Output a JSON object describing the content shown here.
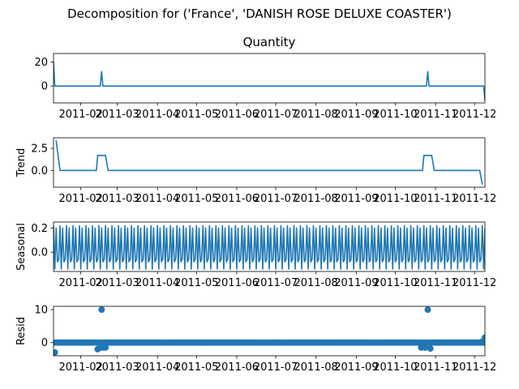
{
  "suptitle": "Decomposition for ('France', 'DANISH ROSE DELUXE COASTER')",
  "chart_data": [
    {
      "type": "line",
      "title": "Quantity",
      "ylabel": "",
      "x_range": [
        "2011-01-11",
        "2011-12-09"
      ],
      "ylim": [
        -14,
        27
      ],
      "yticks": [
        0,
        20
      ],
      "ytick_labels": [
        "0",
        "20"
      ],
      "xticks": [
        "2011-02-01",
        "2011-03-01",
        "2011-04-01",
        "2011-05-01",
        "2011-06-01",
        "2011-07-01",
        "2011-08-01",
        "2011-09-01",
        "2011-10-01",
        "2011-11-01",
        "2011-12-01"
      ],
      "xtick_labels": [
        "2011-02",
        "2011-03",
        "2011-04",
        "2011-05",
        "2011-06",
        "2011-07",
        "2011-08",
        "2011-09",
        "2011-10",
        "2011-11",
        "2011-12"
      ],
      "color": "#1f77b4",
      "x": [
        "2011-01-11",
        "2011-01-12",
        "2011-02-16",
        "2011-02-17",
        "2011-02-18",
        "2011-10-25",
        "2011-10-26",
        "2011-10-27",
        "2011-12-08",
        "2011-12-09"
      ],
      "y": [
        20,
        0,
        0,
        12,
        0,
        0,
        12,
        0,
        0,
        -12
      ]
    },
    {
      "type": "line",
      "title": "",
      "ylabel": "Trend",
      "x_range": [
        "2011-01-11",
        "2011-12-09"
      ],
      "ylim": [
        -1.9,
        3.7
      ],
      "yticks": [
        0,
        2.5
      ],
      "ytick_labels": [
        "0.0",
        "2.5"
      ],
      "xticks": [
        "2011-02-01",
        "2011-03-01",
        "2011-04-01",
        "2011-05-01",
        "2011-06-01",
        "2011-07-01",
        "2011-08-01",
        "2011-09-01",
        "2011-10-01",
        "2011-11-01",
        "2011-12-01"
      ],
      "xtick_labels": [
        "2011-02",
        "2011-03",
        "2011-04",
        "2011-05",
        "2011-06",
        "2011-07",
        "2011-08",
        "2011-09",
        "2011-10",
        "2011-11",
        "2011-12"
      ],
      "color": "#1f77b4",
      "x": [
        "2011-01-13",
        "2011-01-16",
        "2011-02-13",
        "2011-02-14",
        "2011-02-20",
        "2011-02-22",
        "2011-10-22",
        "2011-10-23",
        "2011-10-29",
        "2011-10-31",
        "2011-12-05",
        "2011-12-07"
      ],
      "y": [
        3.4,
        0,
        0,
        1.7,
        1.7,
        0,
        0,
        1.7,
        1.7,
        0,
        0,
        -1.6
      ]
    },
    {
      "type": "line",
      "title": "",
      "ylabel": "Seasonal",
      "x_range": [
        "2011-01-11",
        "2011-12-09"
      ],
      "ylim": [
        -0.16,
        0.25
      ],
      "yticks": [
        0,
        0.2
      ],
      "ytick_labels": [
        "0.0",
        "0.2"
      ],
      "xticks": [
        "2011-02-01",
        "2011-03-01",
        "2011-04-01",
        "2011-05-01",
        "2011-06-01",
        "2011-07-01",
        "2011-08-01",
        "2011-09-01",
        "2011-10-01",
        "2011-11-01",
        "2011-12-01"
      ],
      "xtick_labels": [
        "2011-02",
        "2011-03",
        "2011-04",
        "2011-05",
        "2011-06",
        "2011-07",
        "2011-08",
        "2011-09",
        "2011-10",
        "2011-11",
        "2011-12"
      ],
      "color": "#1f77b4",
      "start": "2011-01-11",
      "end": "2011-12-09",
      "period_days": 5,
      "cycle": [
        0.22,
        -0.14,
        0.2,
        -0.08,
        -0.06
      ]
    },
    {
      "type": "scatter",
      "title": "",
      "ylabel": "Resid",
      "x_range": [
        "2011-01-11",
        "2011-12-09"
      ],
      "ylim": [
        -4,
        11
      ],
      "yticks": [
        0,
        10
      ],
      "ytick_labels": [
        "0",
        "10"
      ],
      "xticks": [
        "2011-02-01",
        "2011-03-01",
        "2011-04-01",
        "2011-05-01",
        "2011-06-01",
        "2011-07-01",
        "2011-08-01",
        "2011-09-01",
        "2011-10-01",
        "2011-11-01",
        "2011-12-01"
      ],
      "xtick_labels": [
        "2011-02",
        "2011-03",
        "2011-04",
        "2011-05",
        "2011-06",
        "2011-07",
        "2011-08",
        "2011-09",
        "2011-10",
        "2011-11",
        "2011-12"
      ],
      "color": "#1f77b4",
      "start": "2011-01-12",
      "end": "2011-12-09",
      "step_days": 2,
      "baseline": 0,
      "outliers": [
        {
          "x": "2011-01-12",
          "y": -3
        },
        {
          "x": "2011-02-14",
          "y": -2
        },
        {
          "x": "2011-02-16",
          "y": -1.5
        },
        {
          "x": "2011-02-17",
          "y": 10
        },
        {
          "x": "2011-02-18",
          "y": -1.5
        },
        {
          "x": "2011-02-20",
          "y": -1.5
        },
        {
          "x": "2011-10-21",
          "y": -1.5
        },
        {
          "x": "2011-10-24",
          "y": -1.5
        },
        {
          "x": "2011-10-26",
          "y": 10
        },
        {
          "x": "2011-10-28",
          "y": -1.8
        },
        {
          "x": "2011-12-07",
          "y": 0.3
        },
        {
          "x": "2011-12-09",
          "y": 1.5
        }
      ]
    }
  ]
}
